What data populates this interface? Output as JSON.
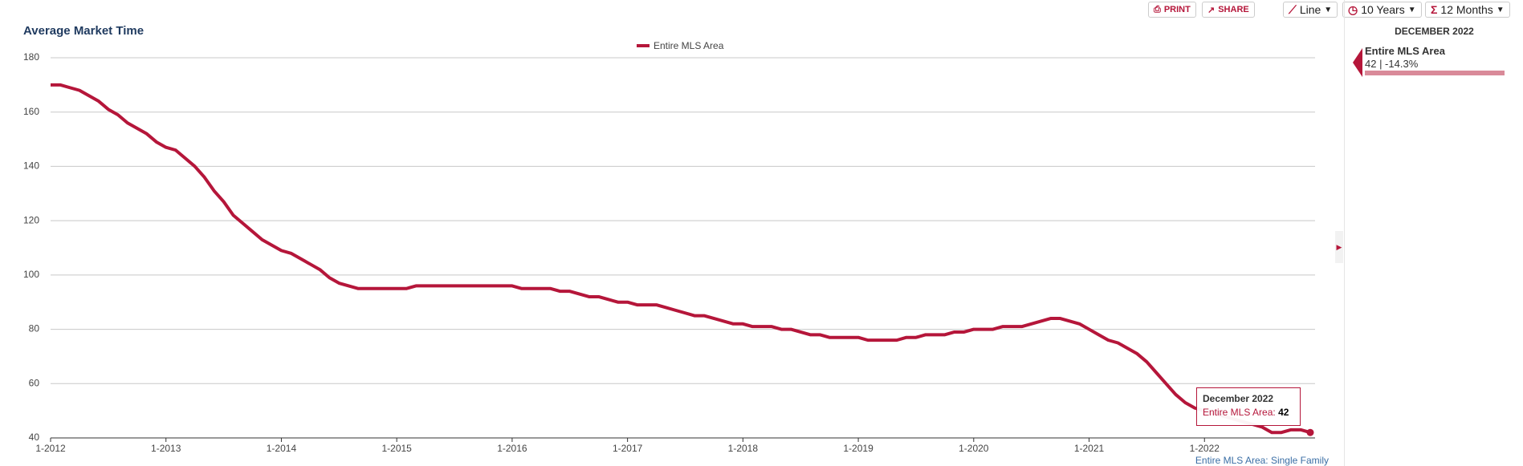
{
  "chart_data": {
    "type": "line",
    "title": "Average Market Time",
    "categories": [
      "1-2012",
      null,
      null,
      null,
      null,
      null,
      null,
      null,
      null,
      null,
      null,
      null,
      "1-2013",
      null,
      null,
      null,
      null,
      null,
      null,
      null,
      null,
      null,
      null,
      null,
      "1-2014",
      null,
      null,
      null,
      null,
      null,
      null,
      null,
      null,
      null,
      null,
      null,
      "1-2015",
      null,
      null,
      null,
      null,
      null,
      null,
      null,
      null,
      null,
      null,
      null,
      "1-2016",
      null,
      null,
      null,
      null,
      null,
      null,
      null,
      null,
      null,
      null,
      null,
      "1-2017",
      null,
      null,
      null,
      null,
      null,
      null,
      null,
      null,
      null,
      null,
      null,
      "1-2018",
      null,
      null,
      null,
      null,
      null,
      null,
      null,
      null,
      null,
      null,
      null,
      "1-2019",
      null,
      null,
      null,
      null,
      null,
      null,
      null,
      null,
      null,
      null,
      null,
      "1-2020",
      null,
      null,
      null,
      null,
      null,
      null,
      null,
      null,
      null,
      null,
      null,
      "1-2021",
      null,
      null,
      null,
      null,
      null,
      null,
      null,
      null,
      null,
      null,
      null,
      "1-2022",
      null,
      null,
      null,
      null,
      null,
      null,
      null,
      null,
      null,
      null,
      null
    ],
    "series": [
      {
        "name": "Entire MLS Area",
        "color": "#b5163a",
        "values": [
          170,
          170,
          169,
          168,
          166,
          164,
          161,
          159,
          156,
          154,
          152,
          149,
          147,
          146,
          143,
          140,
          136,
          131,
          127,
          122,
          119,
          116,
          113,
          111,
          109,
          108,
          106,
          104,
          102,
          99,
          97,
          96,
          95,
          95,
          95,
          95,
          95,
          95,
          96,
          96,
          96,
          96,
          96,
          96,
          96,
          96,
          96,
          96,
          96,
          95,
          95,
          95,
          95,
          94,
          94,
          93,
          92,
          92,
          91,
          90,
          90,
          89,
          89,
          89,
          88,
          87,
          86,
          85,
          85,
          84,
          83,
          82,
          82,
          81,
          81,
          81,
          80,
          80,
          79,
          78,
          78,
          77,
          77,
          77,
          77,
          76,
          76,
          76,
          76,
          77,
          77,
          78,
          78,
          78,
          79,
          79,
          80,
          80,
          80,
          81,
          81,
          81,
          82,
          83,
          84,
          84,
          83,
          82,
          80,
          78,
          76,
          75,
          73,
          71,
          68,
          64,
          60,
          56,
          53,
          51,
          50,
          49,
          48,
          47,
          46,
          45,
          44,
          42,
          42,
          43,
          43,
          42
        ]
      }
    ],
    "ylim": [
      40,
      180
    ],
    "yticks": [
      40,
      60,
      80,
      100,
      120,
      140,
      160,
      180
    ],
    "grid": true,
    "tooltip": {
      "title": "December 2022",
      "label": "Entire MLS Area:"
    },
    "footer": "Entire MLS Area: Single Family"
  },
  "toolbar": {
    "print": "PRINT",
    "share": "SHARE",
    "chart_type": "Line",
    "range": "10 Years",
    "period": "12 Months"
  },
  "panel": {
    "heading": "DECEMBER 2022",
    "name": "Entire MLS Area",
    "detail": "42 | -14.3%"
  }
}
